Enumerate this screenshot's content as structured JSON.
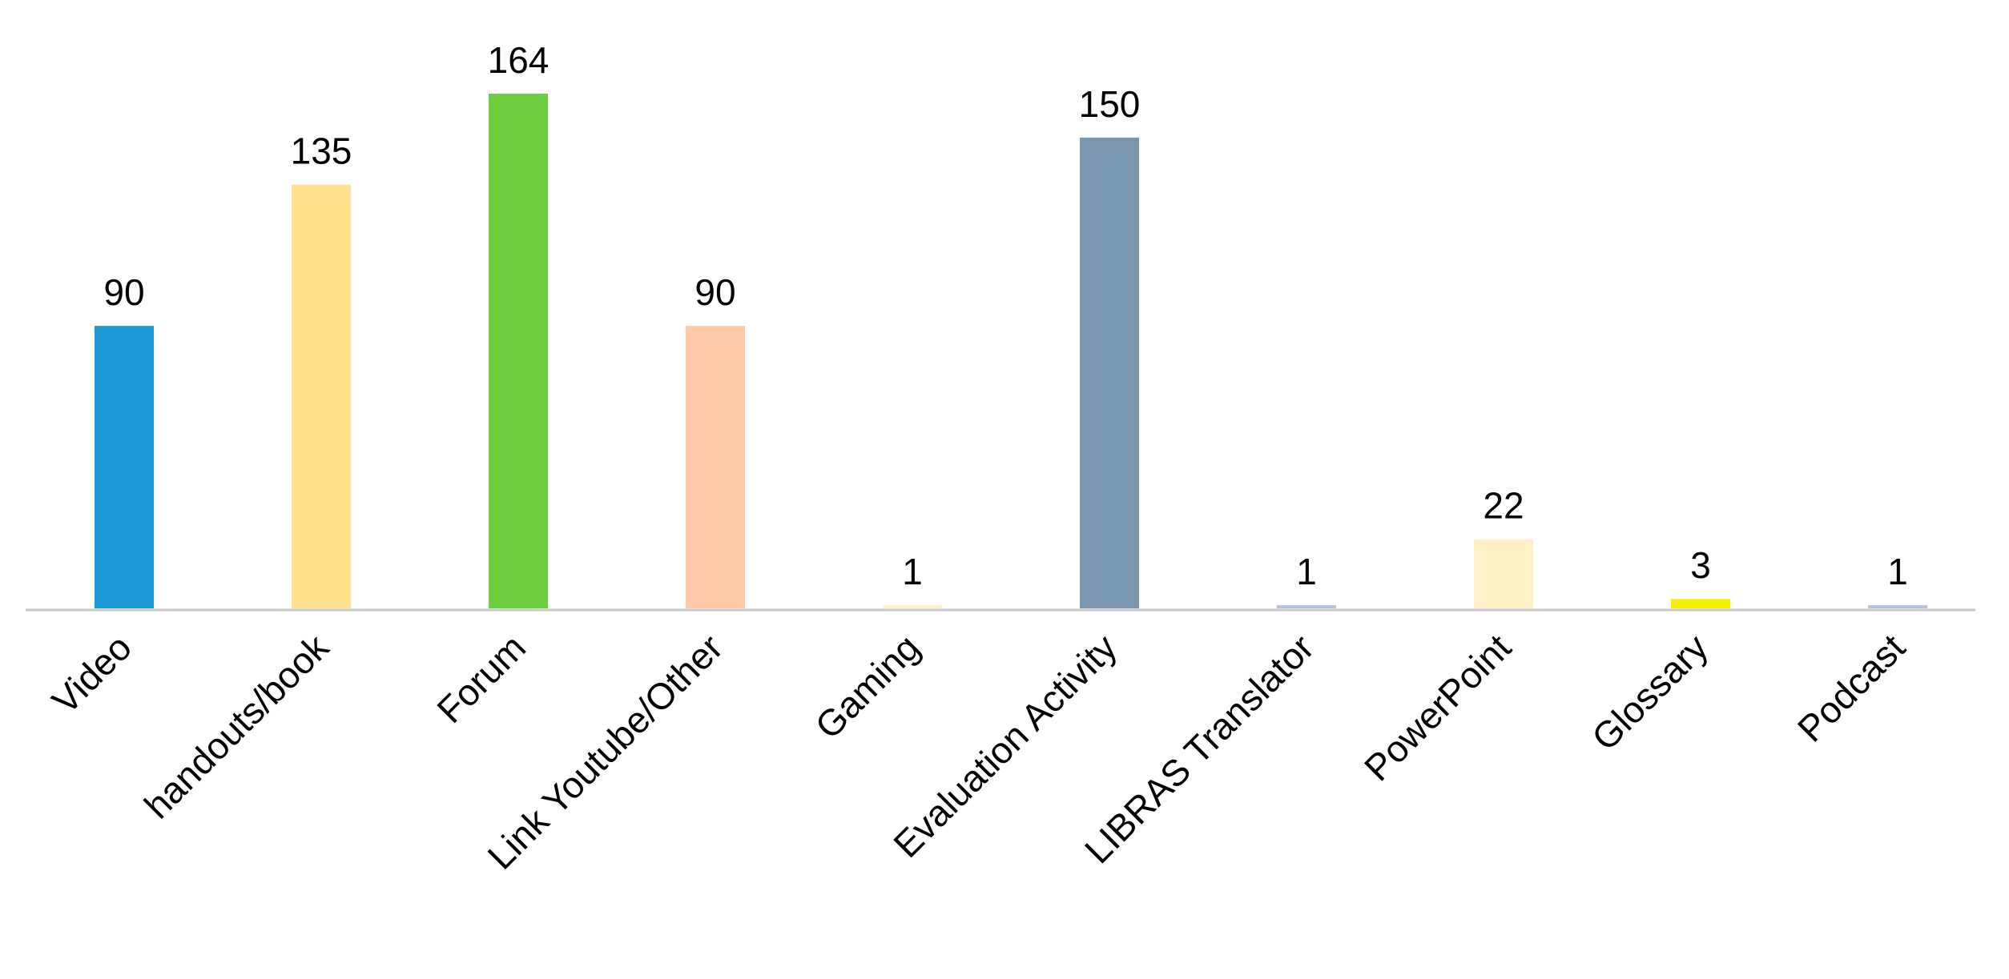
{
  "chart_data": {
    "type": "bar",
    "categories": [
      "Video",
      "handouts/book",
      "Forum",
      "Link Youtube/Other",
      "Gaming",
      "Evaluation Activity",
      "LIBRAS Translator",
      "PowerPoint",
      "Glossary",
      "Podcast"
    ],
    "values": [
      90,
      135,
      164,
      90,
      1,
      150,
      1,
      22,
      3,
      1
    ],
    "colors": [
      "#1a9bd8",
      "#ffe08f",
      "#6dcf3f",
      "#ffcaa8",
      "#fff0c8",
      "#7a97b0",
      "#b4c3da",
      "#fff0c8",
      "#f3ef00",
      "#b4c3da"
    ]
  }
}
